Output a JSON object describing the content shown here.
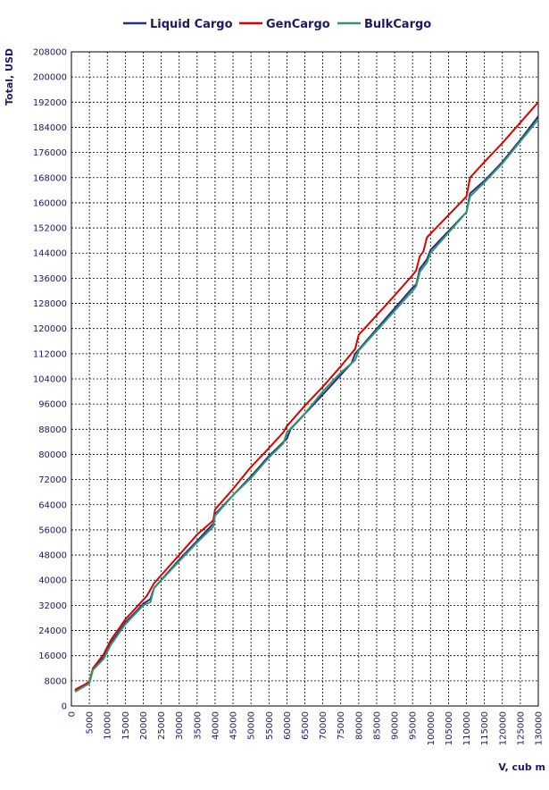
{
  "chart_data": {
    "type": "line",
    "xlabel": "V, cub m",
    "ylabel": "Total, USD",
    "xlim": [
      0,
      130000
    ],
    "ylim": [
      0,
      208000
    ],
    "x_ticks": [
      0,
      5000,
      10000,
      15000,
      20000,
      25000,
      30000,
      35000,
      40000,
      45000,
      50000,
      55000,
      60000,
      65000,
      70000,
      75000,
      80000,
      85000,
      90000,
      95000,
      100000,
      105000,
      110000,
      115000,
      120000,
      125000,
      130000
    ],
    "y_ticks": [
      0,
      8000,
      16000,
      24000,
      32000,
      40000,
      48000,
      56000,
      64000,
      72000,
      80000,
      88000,
      96000,
      104000,
      112000,
      120000,
      128000,
      136000,
      144000,
      152000,
      160000,
      168000,
      176000,
      184000,
      192000,
      200000,
      208000
    ],
    "grid": true,
    "legend_position": "top",
    "series": [
      {
        "name": "Liquid Cargo",
        "color": "#2b2b8c",
        "points": [
          [
            1000,
            4800
          ],
          [
            4000,
            6800
          ],
          [
            5000,
            7400
          ],
          [
            6000,
            11800
          ],
          [
            9000,
            15500
          ],
          [
            11000,
            20000
          ],
          [
            15000,
            26500
          ],
          [
            20000,
            32500
          ],
          [
            22000,
            34000
          ],
          [
            23000,
            37500
          ],
          [
            30000,
            46500
          ],
          [
            35000,
            52500
          ],
          [
            39500,
            58000
          ],
          [
            40000,
            61000
          ],
          [
            45000,
            67000
          ],
          [
            50000,
            73000
          ],
          [
            55000,
            79500
          ],
          [
            60000,
            85000
          ],
          [
            61000,
            88000
          ],
          [
            70000,
            99000
          ],
          [
            78000,
            109000
          ],
          [
            79000,
            112000
          ],
          [
            95000,
            133000
          ],
          [
            96000,
            134000
          ],
          [
            97000,
            139000
          ],
          [
            99000,
            142000
          ],
          [
            100000,
            145000
          ],
          [
            110000,
            157000
          ],
          [
            111000,
            163000
          ],
          [
            115000,
            167000
          ],
          [
            120000,
            173000
          ],
          [
            125000,
            180000
          ],
          [
            130000,
            187500
          ]
        ]
      },
      {
        "name": "GenCargo",
        "color": "#e00000",
        "points": [
          [
            1000,
            5200
          ],
          [
            4000,
            7000
          ],
          [
            5000,
            7800
          ],
          [
            6000,
            12000
          ],
          [
            9000,
            16500
          ],
          [
            11000,
            21000
          ],
          [
            15000,
            27500
          ],
          [
            17000,
            30000
          ],
          [
            21000,
            35000
          ],
          [
            23000,
            39000
          ],
          [
            30000,
            48000
          ],
          [
            35000,
            54500
          ],
          [
            39500,
            59000
          ],
          [
            40000,
            62500
          ],
          [
            45000,
            69000
          ],
          [
            50000,
            76000
          ],
          [
            55000,
            82000
          ],
          [
            59000,
            87000
          ],
          [
            60000,
            89000
          ],
          [
            65000,
            95500
          ],
          [
            70000,
            101500
          ],
          [
            75000,
            108000
          ],
          [
            79000,
            113500
          ],
          [
            80000,
            118000
          ],
          [
            88000,
            128000
          ],
          [
            95000,
            137000
          ],
          [
            96000,
            138500
          ],
          [
            97000,
            143000
          ],
          [
            98000,
            144500
          ],
          [
            99000,
            149000
          ],
          [
            110000,
            162000
          ],
          [
            111000,
            168000
          ],
          [
            115000,
            173000
          ],
          [
            120000,
            179000
          ],
          [
            125000,
            185500
          ],
          [
            130000,
            192000
          ]
        ]
      },
      {
        "name": "BulkCargo",
        "color": "#2e9a6a",
        "points": [
          [
            1000,
            4500
          ],
          [
            4000,
            6500
          ],
          [
            5000,
            7200
          ],
          [
            6000,
            11500
          ],
          [
            9000,
            15000
          ],
          [
            11000,
            19500
          ],
          [
            15000,
            26000
          ],
          [
            20000,
            32000
          ],
          [
            22000,
            33000
          ],
          [
            23000,
            37500
          ],
          [
            30000,
            46000
          ],
          [
            35000,
            52000
          ],
          [
            39500,
            57000
          ],
          [
            40000,
            60500
          ],
          [
            45000,
            67000
          ],
          [
            50000,
            72500
          ],
          [
            55000,
            79000
          ],
          [
            59000,
            83500
          ],
          [
            60000,
            87000
          ],
          [
            65000,
            93000
          ],
          [
            70000,
            100000
          ],
          [
            75000,
            106000
          ],
          [
            79000,
            110000
          ],
          [
            80000,
            113000
          ],
          [
            95000,
            132000
          ],
          [
            96000,
            133500
          ],
          [
            97000,
            138000
          ],
          [
            99000,
            141000
          ],
          [
            100000,
            144000
          ],
          [
            110000,
            157000
          ],
          [
            111000,
            162000
          ],
          [
            115000,
            166500
          ],
          [
            120000,
            172500
          ],
          [
            125000,
            179500
          ],
          [
            130000,
            186500
          ]
        ]
      }
    ]
  }
}
